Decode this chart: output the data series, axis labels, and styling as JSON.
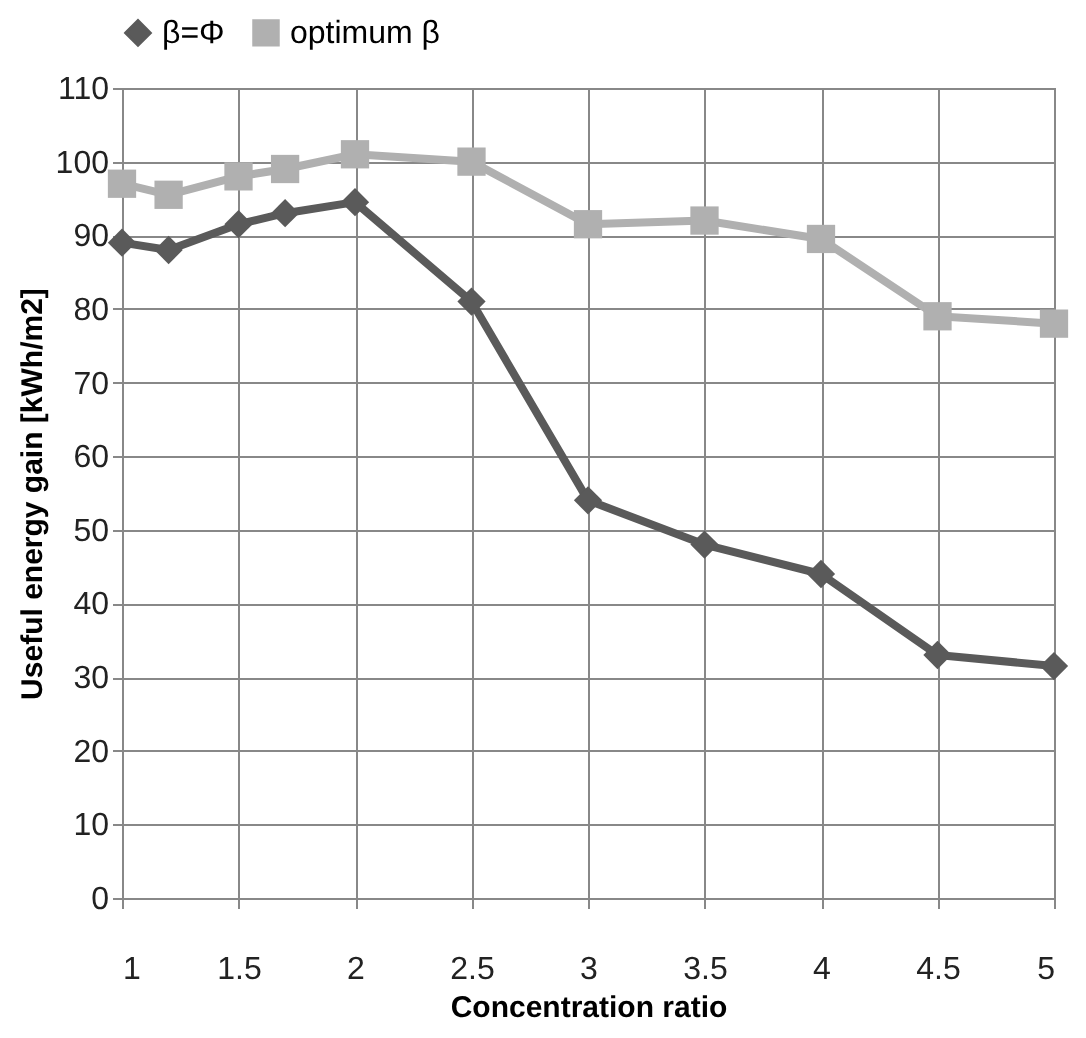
{
  "chart_data": {
    "type": "line",
    "xlabel": "Concentration ratio",
    "ylabel": "Useful energy gain  [kWh/m2]",
    "x": [
      1,
      1.2,
      1.5,
      1.7,
      2,
      2.5,
      3,
      3.5,
      4,
      4.5,
      5
    ],
    "series": [
      {
        "name": "β=Φ",
        "color": "#5a5a5a",
        "marker": "diamond",
        "values": [
          89,
          88,
          91.5,
          93,
          94.5,
          81,
          54,
          48,
          44,
          33,
          31.5
        ]
      },
      {
        "name": "optimum β",
        "color": "#b0b0b0",
        "marker": "square",
        "values": [
          97,
          95.5,
          98,
          99,
          101,
          100,
          91.5,
          92,
          89.5,
          79,
          78
        ]
      }
    ],
    "xlim": [
      1,
      5
    ],
    "xticks": [
      1,
      1.5,
      2,
      2.5,
      3,
      3.5,
      4,
      4.5,
      5
    ],
    "ylim": [
      0,
      110
    ],
    "yticks": [
      0,
      10,
      20,
      30,
      40,
      50,
      60,
      70,
      80,
      90,
      100,
      110
    ],
    "grid": true,
    "legend": "top",
    "line_style": "solid"
  }
}
